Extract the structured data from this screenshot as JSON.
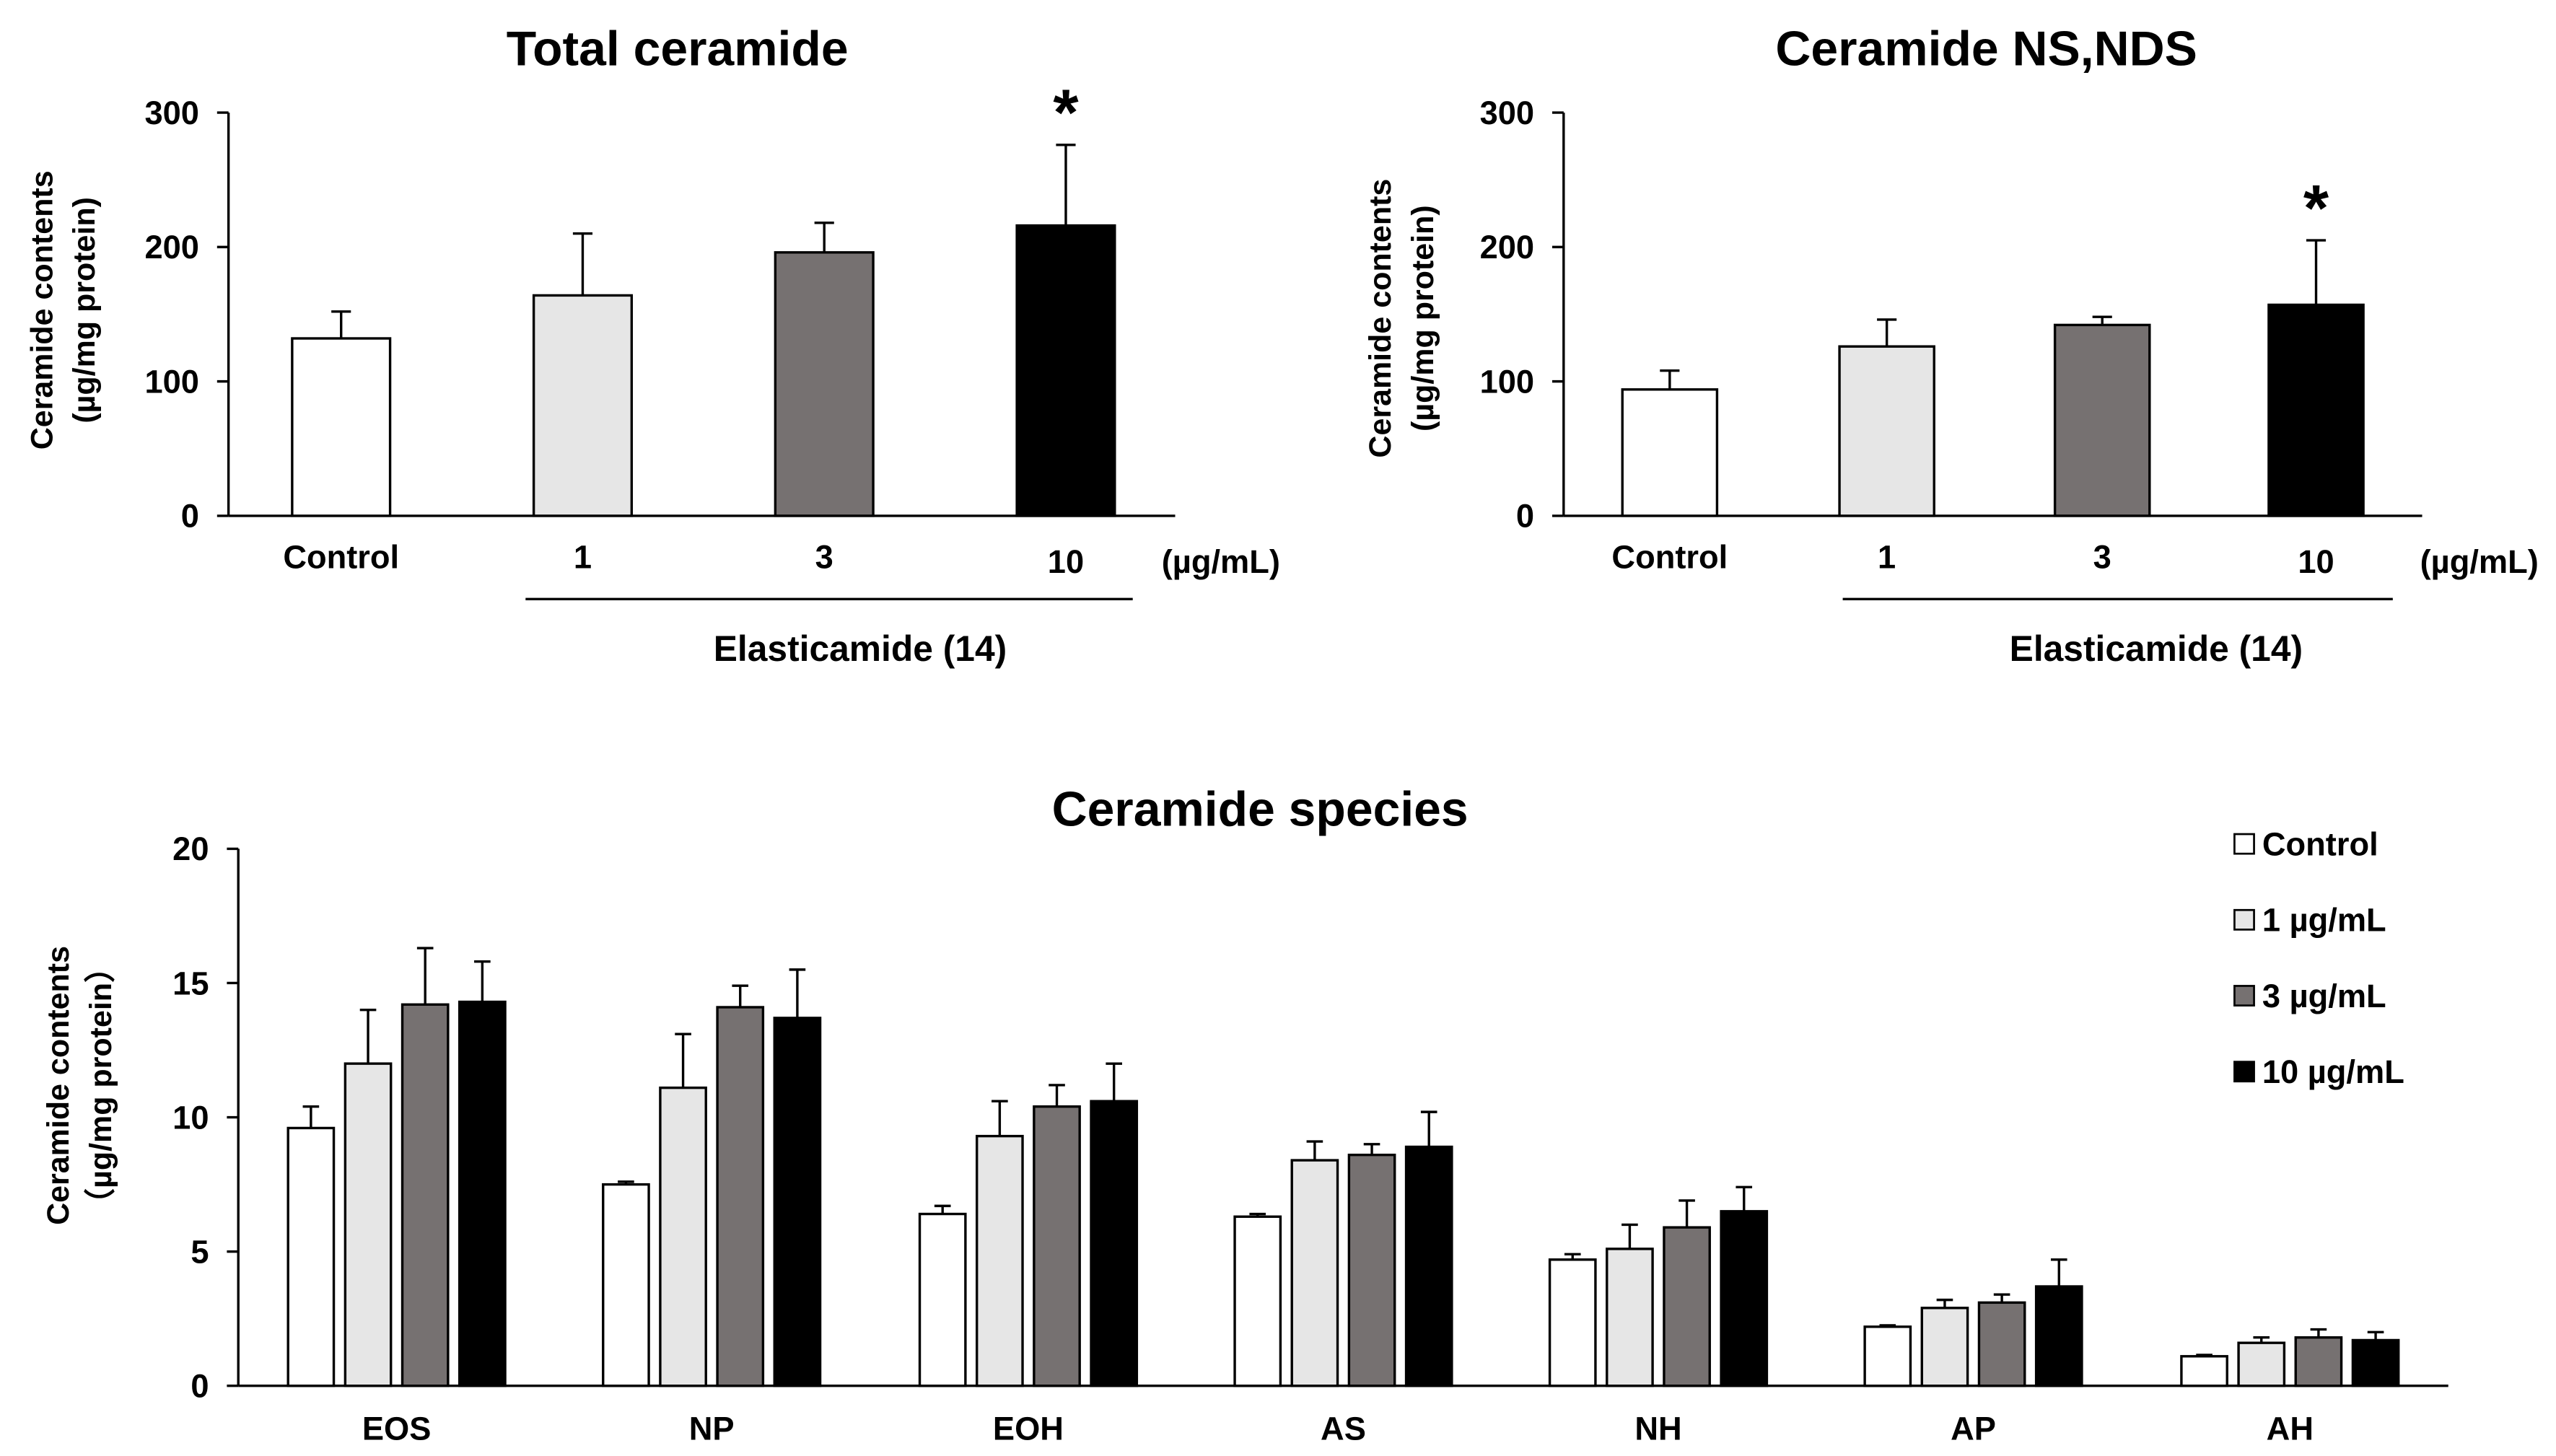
{
  "chart_data": [
    {
      "id": "total",
      "type": "bar",
      "title": "Total ceramide",
      "ylabel_lines": [
        "Ceramide contents",
        "(µg/mg protein)"
      ],
      "ylim": [
        0,
        300
      ],
      "yticks": [
        0,
        100,
        200,
        300
      ],
      "categories": [
        "Control",
        "1",
        "3",
        "10"
      ],
      "values": [
        132,
        164,
        196,
        216
      ],
      "errors": [
        20,
        46,
        22,
        60
      ],
      "colors": [
        "#ffffff",
        "#e6e6e6",
        "#767171",
        "#000000"
      ],
      "significance": [
        "",
        "",
        "",
        "*"
      ],
      "unit_label": "(µg/mL)",
      "group_label": "Elasticamide (14)"
    },
    {
      "id": "nsnds",
      "type": "bar",
      "title": "Ceramide NS,NDS",
      "ylabel_lines": [
        "Ceramide contents",
        "(µg/mg protein)"
      ],
      "ylim": [
        0,
        300
      ],
      "yticks": [
        0,
        100,
        200,
        300
      ],
      "categories": [
        "Control",
        "1",
        "3",
        "10"
      ],
      "values": [
        94,
        126,
        142,
        157
      ],
      "errors": [
        14,
        20,
        6,
        48
      ],
      "colors": [
        "#ffffff",
        "#e6e6e6",
        "#767171",
        "#000000"
      ],
      "significance": [
        "",
        "",
        "",
        "*"
      ],
      "unit_label": "(µg/mL)",
      "group_label": "Elasticamide (14)"
    },
    {
      "id": "species",
      "type": "bar",
      "title": "Ceramide species",
      "ylabel_lines": [
        "Ceramide contents",
        "（µg/mg protein）"
      ],
      "ylim": [
        0,
        20
      ],
      "yticks": [
        0,
        5,
        10,
        15,
        20
      ],
      "categories": [
        "EOS",
        "NP",
        "EOH",
        "AS",
        "NH",
        "AP",
        "AH"
      ],
      "series": [
        {
          "name": "Control",
          "color": "#ffffff",
          "values": [
            9.6,
            7.5,
            6.4,
            6.3,
            4.7,
            2.2,
            1.1
          ],
          "errors": [
            0.8,
            0.1,
            0.3,
            0.1,
            0.2,
            0.05,
            0.05
          ]
        },
        {
          "name": "1 µg/mL",
          "color": "#e6e6e6",
          "values": [
            12.0,
            11.1,
            9.3,
            8.4,
            5.1,
            2.9,
            1.6
          ],
          "errors": [
            2.0,
            2.0,
            1.3,
            0.7,
            0.9,
            0.3,
            0.2
          ]
        },
        {
          "name": "3 µg/mL",
          "color": "#767171",
          "values": [
            14.2,
            14.1,
            10.4,
            8.6,
            5.9,
            3.1,
            1.8
          ],
          "errors": [
            2.1,
            0.8,
            0.8,
            0.4,
            1.0,
            0.3,
            0.3
          ]
        },
        {
          "name": "10 µg/mL",
          "color": "#000000",
          "values": [
            14.3,
            13.7,
            10.6,
            8.9,
            6.5,
            3.7,
            1.7
          ],
          "errors": [
            1.5,
            1.8,
            1.4,
            1.3,
            0.9,
            1.0,
            0.3
          ]
        }
      ],
      "legend_position": "top-right"
    }
  ]
}
